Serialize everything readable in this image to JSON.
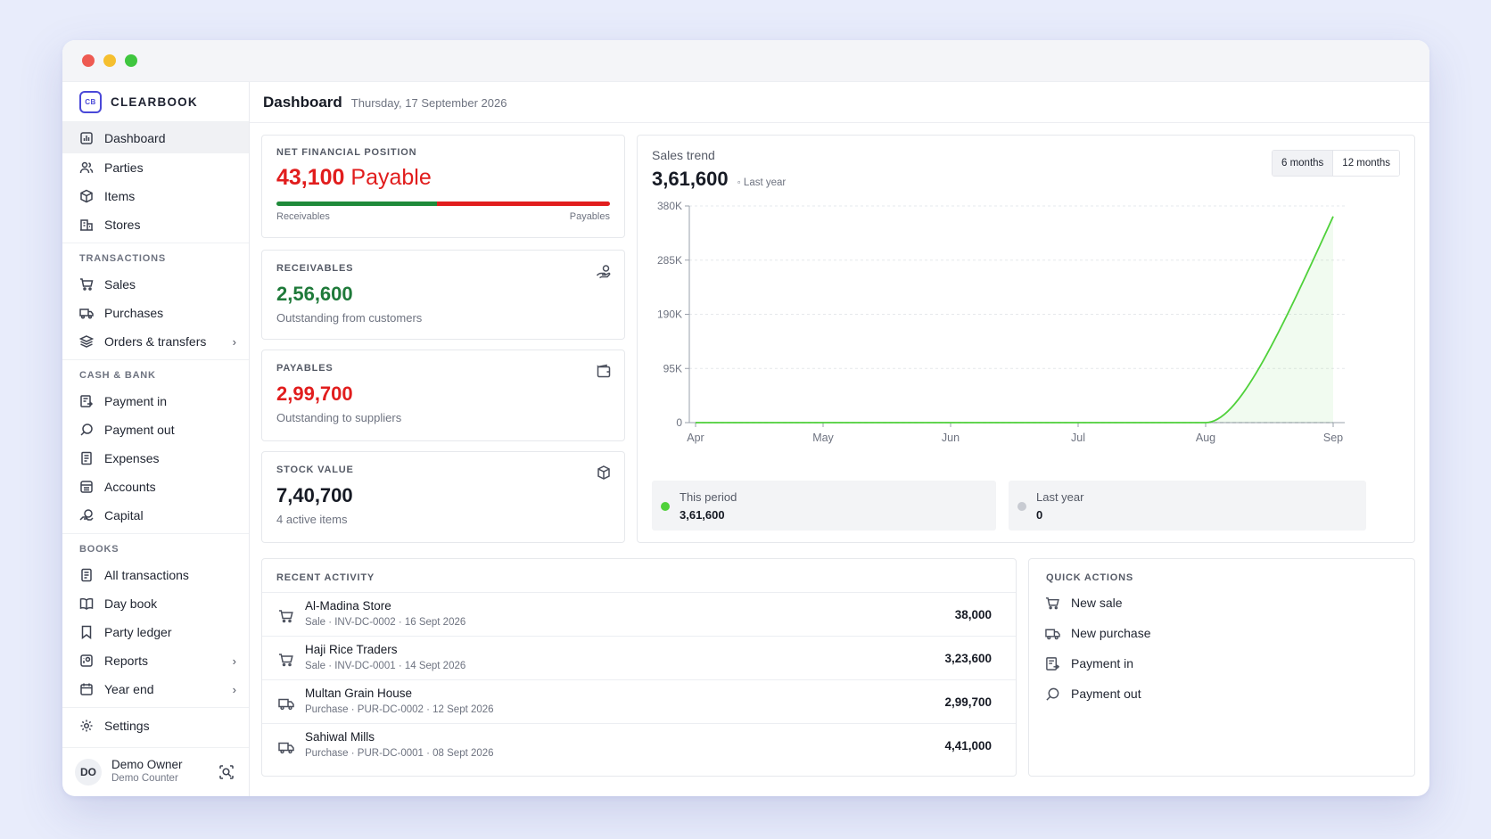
{
  "window": {
    "controls": {
      "close_color": "#ee5a52",
      "minimize_color": "#f5bf2f",
      "maximize_color": "#3fc63f"
    }
  },
  "brand": {
    "logo_text": "CB",
    "name": "CLEARBOOK",
    "accent": "#4a48d8"
  },
  "sidebar": {
    "main_items": [
      {
        "label": "Dashboard",
        "icon": "dashboard-icon",
        "active": true
      },
      {
        "label": "Parties",
        "icon": "users-icon"
      },
      {
        "label": "Items",
        "icon": "box-icon"
      },
      {
        "label": "Stores",
        "icon": "store-icon"
      }
    ],
    "transactions_label": "TRANSACTIONS",
    "transactions": [
      {
        "label": "Sales",
        "icon": "cart-icon"
      },
      {
        "label": "Purchases",
        "icon": "truck-icon"
      },
      {
        "label": "Orders & transfers",
        "icon": "layers-icon",
        "has_submenu": true
      }
    ],
    "cash_label": "CASH & BANK",
    "cash": [
      {
        "label": "Payment in",
        "icon": "payment-in-icon"
      },
      {
        "label": "Payment out",
        "icon": "payment-out-icon"
      },
      {
        "label": "Expenses",
        "icon": "receipt-icon"
      },
      {
        "label": "Accounts",
        "icon": "bank-icon"
      },
      {
        "label": "Capital",
        "icon": "capital-icon"
      }
    ],
    "books_label": "BOOKS",
    "books": [
      {
        "label": "All transactions",
        "icon": "list-icon"
      },
      {
        "label": "Day book",
        "icon": "book-icon"
      },
      {
        "label": "Party ledger",
        "icon": "bookmark-icon"
      },
      {
        "label": "Reports",
        "icon": "report-icon",
        "has_submenu": true
      },
      {
        "label": "Year end",
        "icon": "calendar-icon",
        "has_submenu": true
      }
    ],
    "settings_label": "Settings",
    "user": {
      "initials": "DO",
      "name": "Demo Owner",
      "role": "Demo Counter"
    }
  },
  "header": {
    "title": "Dashboard",
    "date": "Thursday, 17 September 2026"
  },
  "net_position": {
    "label": "NET FINANCIAL POSITION",
    "amount": "43,100",
    "status": "Payable",
    "receivables_share": 0.48,
    "left_label": "Receivables",
    "right_label": "Payables",
    "green": "#1f8a3a",
    "red": "#e11d1d"
  },
  "receivables": {
    "label": "RECEIVABLES",
    "value": "2,56,600",
    "sub": "Outstanding from customers",
    "color": "#1f7a3a"
  },
  "payables": {
    "label": "PAYABLES",
    "value": "2,99,700",
    "sub": "Outstanding to suppliers",
    "color": "#e11d1d"
  },
  "stock": {
    "label": "STOCK VALUE",
    "value": "7,40,700",
    "sub": "4 active items"
  },
  "sales_trend": {
    "title": "Sales trend",
    "total": "3,61,600",
    "compare_label": "Last year",
    "range_options": [
      "6 months",
      "12 months"
    ],
    "active_range": "6 months",
    "this_period_label": "This period",
    "this_period_value": "3,61,600",
    "last_year_label": "Last year",
    "last_year_value": "0",
    "this_color": "#4fd13a",
    "last_color": "#c8cbd2"
  },
  "chart_data": {
    "type": "line",
    "x": [
      "Apr",
      "May",
      "Jun",
      "Jul",
      "Aug",
      "Sep"
    ],
    "yticks": [
      "380K",
      "285K",
      "190K",
      "95K",
      "0"
    ],
    "ylim": [
      0,
      380000
    ],
    "grid": true,
    "series": [
      {
        "name": "This period",
        "values": [
          0,
          0,
          0,
          0,
          0,
          361600
        ]
      },
      {
        "name": "Last year",
        "values": [
          0,
          0,
          0,
          0,
          0,
          0
        ]
      }
    ]
  },
  "recent_activity": {
    "label": "RECENT ACTIVITY",
    "rows": [
      {
        "name": "Al-Madina Store",
        "meta": "Sale · INV-DC-0002 · 16 Sept 2026",
        "amount": "38,000",
        "icon": "cart-icon"
      },
      {
        "name": "Haji Rice Traders",
        "meta": "Sale · INV-DC-0001 · 14 Sept 2026",
        "amount": "3,23,600",
        "icon": "cart-icon"
      },
      {
        "name": "Multan Grain House",
        "meta": "Purchase · PUR-DC-0002 · 12 Sept 2026",
        "amount": "2,99,700",
        "icon": "truck-icon"
      },
      {
        "name": "Sahiwal Mills",
        "meta": "Purchase · PUR-DC-0001 · 08 Sept 2026",
        "amount": "4,41,000",
        "icon": "truck-icon"
      }
    ]
  },
  "quick_actions": {
    "label": "QUICK ACTIONS",
    "items": [
      {
        "label": "New sale",
        "icon": "cart-icon"
      },
      {
        "label": "New purchase",
        "icon": "truck-icon"
      },
      {
        "label": "Payment in",
        "icon": "payment-in-icon"
      },
      {
        "label": "Payment out",
        "icon": "payment-out-icon"
      }
    ]
  }
}
